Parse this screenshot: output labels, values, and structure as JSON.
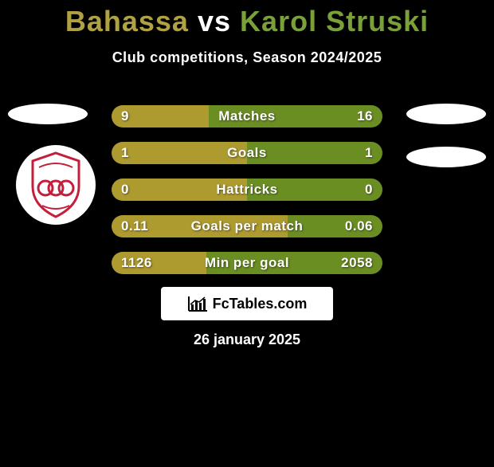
{
  "colors": {
    "background": "#000000",
    "player1": "#ad9b2f",
    "player2": "#6b8e23",
    "text": "#ffffff",
    "title_p1": "#b0a142",
    "title_p2": "#7aa03a"
  },
  "title": {
    "player1": "Bahassa",
    "vs": "vs",
    "player2": "Karol Struski",
    "fontsize": 36
  },
  "subtitle": "Club competitions, Season 2024/2025",
  "bars": {
    "height": 28,
    "radius": 14,
    "gap": 18,
    "label_fontsize": 17,
    "rows": [
      {
        "label": "Matches",
        "left": "9",
        "right": "16",
        "left_pct": 36,
        "right_pct": 64
      },
      {
        "label": "Goals",
        "left": "1",
        "right": "1",
        "left_pct": 50,
        "right_pct": 50
      },
      {
        "label": "Hattricks",
        "left": "0",
        "right": "0",
        "left_pct": 50,
        "right_pct": 50
      },
      {
        "label": "Goals per match",
        "left": "0.11",
        "right": "0.06",
        "left_pct": 65,
        "right_pct": 35
      },
      {
        "label": "Min per goal",
        "left": "1126",
        "right": "2058",
        "left_pct": 35,
        "right_pct": 65
      }
    ]
  },
  "brand": "FcTables.com",
  "date": "26 january 2025",
  "badge": {
    "stroke": "#c41e3a",
    "fill": "#ffffff"
  }
}
